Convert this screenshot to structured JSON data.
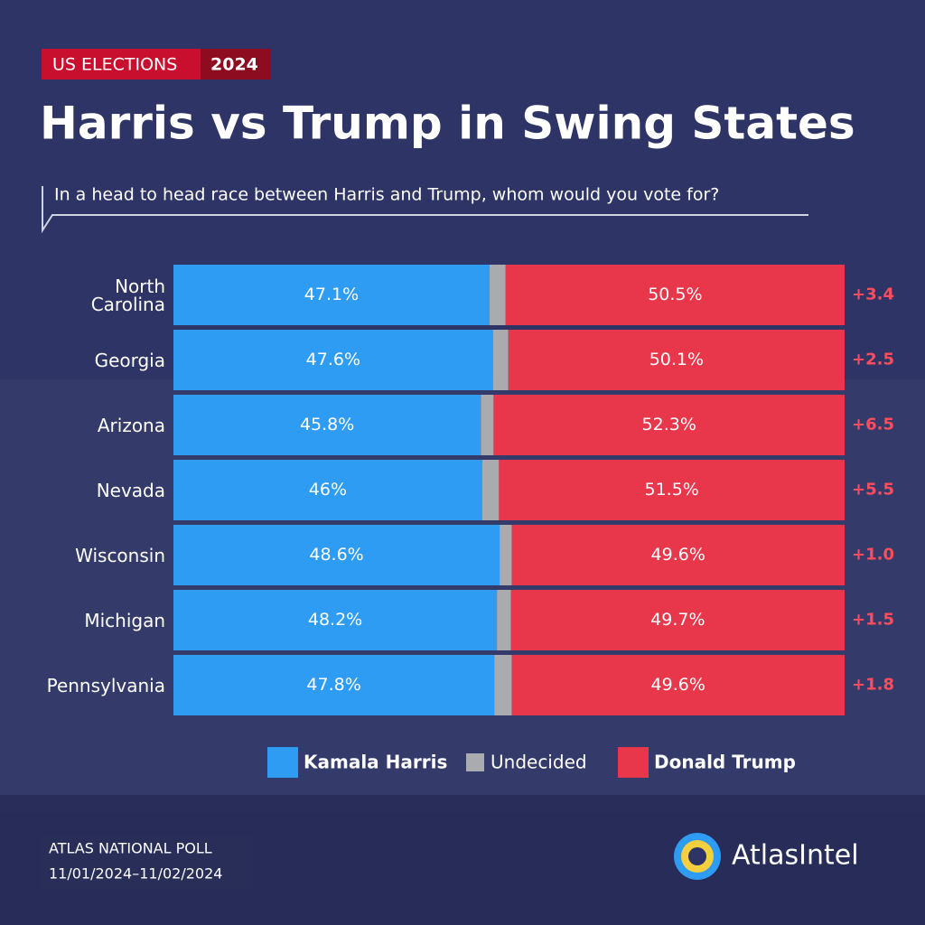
{
  "chart_data": {
    "type": "stacked-bar-horizontal",
    "kicker": "US ELECTIONS",
    "kicker_year": "2024",
    "title": "Harris vs Trump in Swing States",
    "subtitle": "In a head to head race between Harris and Trump, whom would you vote for?",
    "categories": [
      "North\nCarolina",
      "Georgia",
      "Arizona",
      "Nevada",
      "Wisconsin",
      "Michigan",
      "Pennsylvania"
    ],
    "xlim": [
      0,
      100
    ],
    "series": [
      {
        "name": "Kamala Harris",
        "color": "#2f9cf4",
        "values": [
          47.1,
          47.6,
          45.8,
          46,
          48.6,
          48.2,
          47.8
        ],
        "value_labels": [
          "47.1%",
          "47.6%",
          "45.8%",
          "46%",
          "48.6%",
          "48.2%",
          "47.8%"
        ]
      },
      {
        "name": "Undecided",
        "color": "#a9abaf",
        "values": [
          2.4,
          2.3,
          1.9,
          2.5,
          1.8,
          2.1,
          2.6
        ]
      },
      {
        "name": "Donald Trump",
        "color": "#e8364a",
        "values": [
          50.5,
          50.1,
          52.3,
          51.5,
          49.6,
          49.7,
          49.6
        ],
        "value_labels": [
          "50.5%",
          "50.1%",
          "52.3%",
          "51.5%",
          "49.6%",
          "49.7%",
          "49.6%"
        ]
      }
    ],
    "margin_labels": [
      "+3.4",
      "+2.5",
      "+6.5",
      "+5.5",
      "+1.0",
      "+1.5",
      "+1.8"
    ],
    "source": "ATLAS NATIONAL POLL",
    "date_range": "11/01/2024–11/02/2024",
    "brand": "AtlasIntel"
  }
}
